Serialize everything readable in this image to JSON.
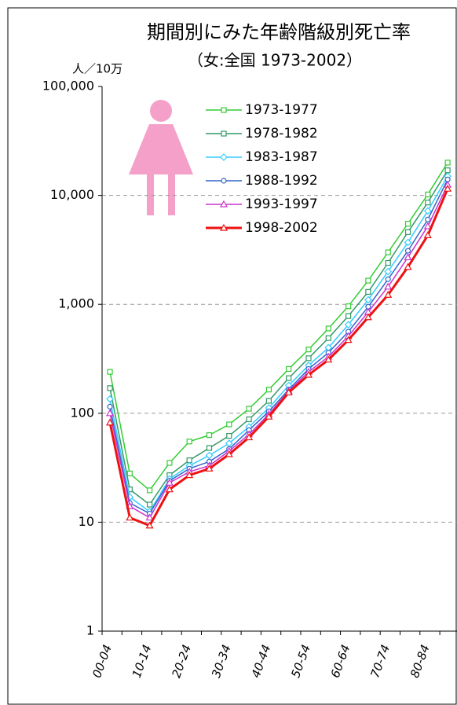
{
  "chart_data": {
    "type": "line",
    "title": "期間別にみた年齢階級別死亡率",
    "subtitle": "（女:全国 1973-2002）",
    "y_label": "人／10万",
    "categories": [
      "00-04",
      null,
      "10-14",
      null,
      "20-24",
      null,
      "30-34",
      null,
      "40-44",
      null,
      "50-54",
      null,
      "60-64",
      null,
      "70-74",
      null,
      "80-84",
      null
    ],
    "log_scale": true,
    "grid": true,
    "legend": "upper-left",
    "ylim": [
      1,
      100000
    ],
    "yticks": [
      1,
      10,
      100,
      {
        "value": 1000,
        "label": "1,000"
      },
      {
        "value": 10000,
        "label": "10,000"
      },
      {
        "value": 100000,
        "label": "100,000"
      }
    ],
    "series": [
      {
        "name": "1973-1977",
        "color": "#33cc33",
        "marker": "square",
        "values": [
          240,
          28,
          19.6,
          35,
          55,
          63,
          79,
          110,
          165,
          255,
          385,
          600,
          960,
          1650,
          3000,
          5500,
          10200,
          20000
        ]
      },
      {
        "name": "1978-1982",
        "color": "#339966",
        "marker": "square",
        "values": [
          170,
          20,
          14.5,
          27,
          37,
          48,
          62,
          88,
          130,
          210,
          320,
          490,
          780,
          1300,
          2400,
          4600,
          8600,
          17000
        ]
      },
      {
        "name": "1983-1987",
        "color": "#33ccff",
        "marker": "diamond",
        "values": [
          135,
          17,
          12.5,
          25,
          33,
          41,
          53,
          75,
          112,
          180,
          275,
          400,
          650,
          1100,
          2000,
          3700,
          7200,
          15000
        ]
      },
      {
        "name": "1988-1992",
        "color": "#3366cc",
        "marker": "circle",
        "values": [
          115,
          15,
          12,
          24,
          31,
          36,
          47,
          70,
          104,
          165,
          255,
          360,
          560,
          950,
          1700,
          3100,
          6000,
          14000
        ]
      },
      {
        "name": "1993-1997",
        "color": "#cc33cc",
        "marker": "triangle",
        "values": [
          100,
          14,
          11,
          23,
          29,
          33,
          45,
          64,
          98,
          160,
          240,
          330,
          510,
          850,
          1450,
          2700,
          5200,
          12500
        ]
      },
      {
        "name": "1998-2002",
        "color": "#ee1111",
        "marker": "triangle",
        "width": 3,
        "values": [
          82,
          11,
          9.3,
          20,
          27,
          31,
          42,
          60,
          93,
          155,
          225,
          310,
          470,
          760,
          1220,
          2200,
          4300,
          11500
        ]
      }
    ]
  }
}
